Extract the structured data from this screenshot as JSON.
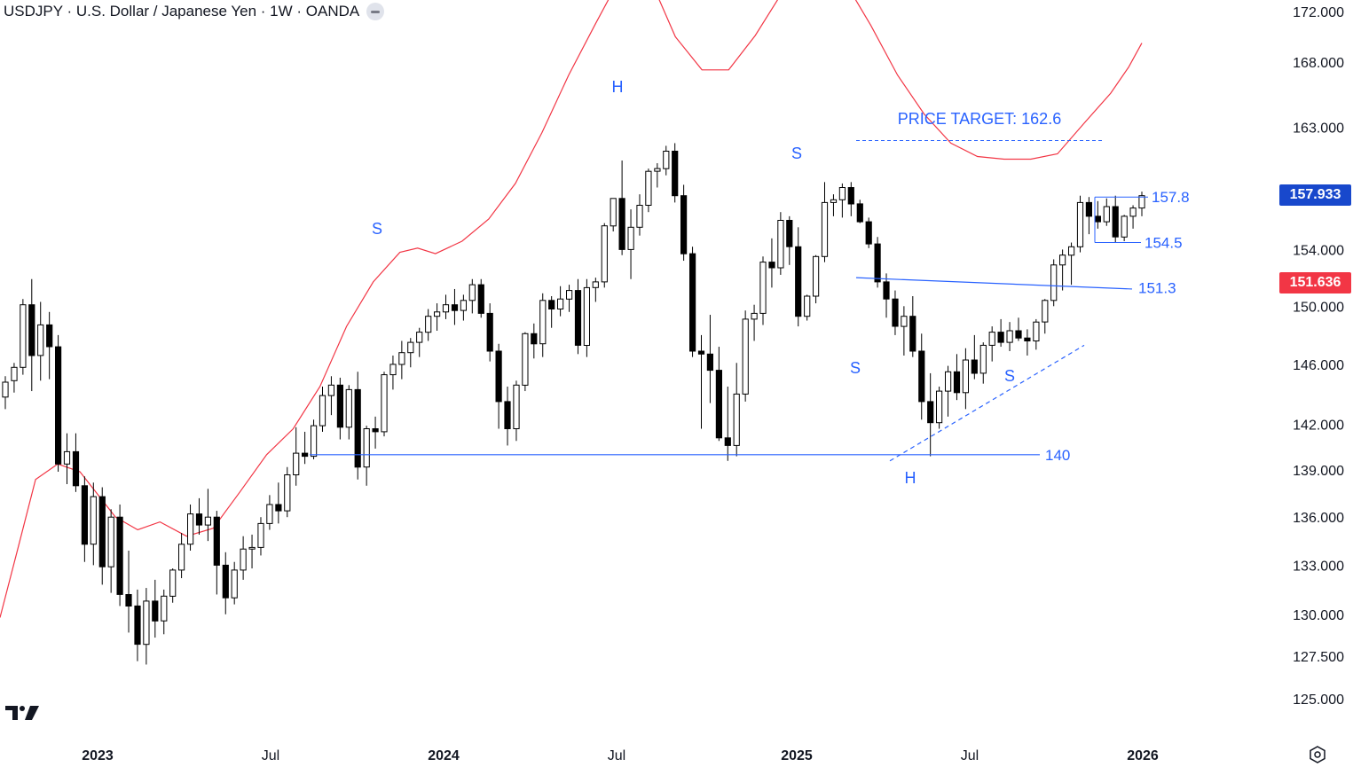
{
  "header": {
    "symbol_line": "USDJPY · U.S. Dollar / Japanese Yen · 1W · OANDA"
  },
  "price_tags": [
    {
      "label": "157.933",
      "value": 157.933,
      "color": "#1848cc"
    },
    {
      "label": "151.636",
      "value": 151.636,
      "color": "#f23645"
    }
  ],
  "chart_data": {
    "type": "candlestick",
    "y_axis": {
      "scale": "log",
      "range": [
        123.2,
        173.0
      ],
      "ticks": [
        "172.000",
        "168.000",
        "163.000",
        "154.000",
        "150.000",
        "146.000",
        "142.000",
        "139.000",
        "136.000",
        "133.000",
        "130.000",
        "127.500",
        "125.000"
      ]
    },
    "x_axis": {
      "labels": [
        "2023",
        "Jul",
        "2024",
        "Jul",
        "2025",
        "Jul",
        "2026"
      ]
    },
    "grid": false,
    "colors": {
      "up": "#ffffff",
      "down": "#000000",
      "wick": "#000000",
      "ma": "#f23645",
      "annotation": "#2962ff"
    },
    "moving_average": {
      "points": [
        [
          0,
          129.8
        ],
        [
          20,
          134
        ],
        [
          40,
          138.4
        ],
        [
          65,
          139.4
        ],
        [
          90,
          138.9
        ],
        [
          130,
          136.0
        ],
        [
          155,
          135.2
        ],
        [
          180,
          135.7
        ],
        [
          210,
          134.8
        ],
        [
          240,
          135.3
        ],
        [
          270,
          137.6
        ],
        [
          300,
          140.0
        ],
        [
          330,
          141.7
        ],
        [
          360,
          144.5
        ],
        [
          390,
          148.6
        ],
        [
          420,
          151.7
        ],
        [
          450,
          153.8
        ],
        [
          470,
          154.1
        ],
        [
          490,
          153.7
        ],
        [
          520,
          154.6
        ],
        [
          550,
          156.2
        ],
        [
          580,
          158.8
        ],
        [
          610,
          162.6
        ],
        [
          640,
          167.0
        ],
        [
          670,
          171.0
        ],
        [
          700,
          175.0
        ],
        [
          715,
          176.0
        ],
        [
          730,
          174.9
        ],
        [
          760,
          170.0
        ],
        [
          790,
          167.4
        ],
        [
          820,
          167.4
        ],
        [
          850,
          170.1
        ],
        [
          880,
          173.5
        ],
        [
          910,
          175.5
        ],
        [
          930,
          175.9
        ],
        [
          950,
          174.5
        ],
        [
          980,
          170.9
        ],
        [
          1010,
          167.0
        ],
        [
          1040,
          164.0
        ],
        [
          1070,
          161.8
        ],
        [
          1100,
          160.8
        ],
        [
          1130,
          160.6
        ],
        [
          1160,
          160.6
        ],
        [
          1190,
          161.0
        ],
        [
          1220,
          163.3
        ],
        [
          1250,
          165.6
        ],
        [
          1270,
          167.6
        ],
        [
          1285,
          169.5
        ]
      ],
      "comment": "MA values in price units; first value = x-index/step position along the bar sequence"
    },
    "candles_ohlc": [
      [
        143.8,
        145.2,
        143.0,
        144.8
      ],
      [
        144.9,
        146.1,
        144.1,
        145.8
      ],
      [
        145.8,
        150.5,
        145.3,
        150.1
      ],
      [
        150.1,
        151.9,
        144.2,
        146.6
      ],
      [
        146.6,
        150.3,
        144.9,
        148.7
      ],
      [
        148.7,
        149.6,
        145.0,
        147.2
      ],
      [
        147.2,
        148.0,
        138.9,
        139.4
      ],
      [
        139.4,
        141.4,
        138.1,
        140.2
      ],
      [
        140.2,
        141.4,
        137.6,
        138.0
      ],
      [
        138.0,
        138.6,
        133.2,
        134.3
      ],
      [
        134.3,
        138.2,
        133.0,
        137.3
      ],
      [
        137.3,
        137.9,
        131.8,
        132.9
      ],
      [
        132.9,
        136.5,
        131.3,
        136.0
      ],
      [
        136.0,
        136.8,
        130.5,
        131.2
      ],
      [
        131.2,
        133.9,
        128.9,
        130.5
      ],
      [
        130.5,
        131.5,
        127.2,
        128.2
      ],
      [
        128.2,
        131.6,
        127.0,
        130.8
      ],
      [
        130.8,
        132.1,
        128.6,
        129.6
      ],
      [
        129.6,
        131.5,
        128.8,
        131.1
      ],
      [
        131.1,
        132.8,
        130.7,
        132.7
      ],
      [
        132.7,
        135.0,
        132.2,
        134.3
      ],
      [
        134.3,
        136.8,
        133.9,
        136.2
      ],
      [
        136.2,
        137.2,
        134.9,
        135.5
      ],
      [
        135.5,
        137.8,
        134.5,
        136.0
      ],
      [
        136.0,
        136.4,
        131.2,
        133.0
      ],
      [
        133.0,
        133.8,
        130.0,
        131.0
      ],
      [
        131.0,
        133.2,
        130.6,
        132.7
      ],
      [
        132.7,
        134.8,
        132.1,
        134.0
      ],
      [
        134.0,
        134.9,
        132.8,
        134.1
      ],
      [
        134.1,
        136.0,
        133.6,
        135.6
      ],
      [
        135.6,
        137.4,
        135.2,
        136.8
      ],
      [
        136.8,
        138.2,
        135.6,
        136.4
      ],
      [
        136.4,
        139.2,
        136.0,
        138.7
      ],
      [
        138.7,
        141.8,
        138.0,
        140.1
      ],
      [
        140.1,
        141.5,
        139.4,
        139.9
      ],
      [
        139.9,
        142.3,
        139.7,
        141.9
      ],
      [
        141.9,
        144.5,
        141.5,
        143.9
      ],
      [
        143.9,
        145.2,
        142.6,
        144.6
      ],
      [
        144.6,
        145.1,
        141.0,
        141.8
      ],
      [
        141.8,
        144.6,
        141.0,
        144.3
      ],
      [
        144.3,
        145.5,
        138.4,
        139.2
      ],
      [
        139.2,
        141.9,
        138.0,
        141.7
      ],
      [
        141.7,
        142.5,
        140.4,
        141.5
      ],
      [
        141.5,
        145.5,
        141.2,
        145.3
      ],
      [
        145.3,
        146.6,
        144.3,
        146.0
      ],
      [
        146.0,
        147.6,
        145.0,
        146.8
      ],
      [
        146.8,
        147.8,
        145.8,
        147.5
      ],
      [
        147.5,
        148.5,
        146.5,
        148.2
      ],
      [
        148.2,
        149.8,
        147.6,
        149.3
      ],
      [
        149.3,
        150.2,
        148.3,
        149.6
      ],
      [
        149.6,
        150.8,
        149.1,
        150.1
      ],
      [
        150.1,
        151.2,
        148.7,
        149.7
      ],
      [
        149.7,
        150.8,
        149.0,
        150.4
      ],
      [
        150.4,
        151.9,
        149.5,
        151.5
      ],
      [
        151.5,
        151.9,
        149.2,
        149.5
      ],
      [
        149.5,
        150.2,
        146.2,
        146.9
      ],
      [
        146.9,
        147.4,
        141.7,
        143.5
      ],
      [
        143.5,
        144.5,
        140.6,
        141.7
      ],
      [
        141.7,
        144.9,
        140.9,
        144.6
      ],
      [
        144.6,
        148.2,
        144.2,
        148.1
      ],
      [
        148.1,
        148.8,
        146.4,
        147.4
      ],
      [
        147.4,
        150.9,
        146.5,
        150.4
      ],
      [
        150.4,
        150.7,
        148.5,
        149.8
      ],
      [
        149.8,
        151.4,
        149.3,
        150.5
      ],
      [
        150.5,
        151.5,
        149.6,
        151.1
      ],
      [
        151.1,
        151.9,
        146.7,
        147.3
      ],
      [
        147.3,
        151.9,
        146.5,
        151.3
      ],
      [
        151.3,
        152.0,
        150.3,
        151.7
      ],
      [
        151.7,
        155.9,
        151.3,
        155.7
      ],
      [
        155.7,
        157.7,
        155.3,
        157.7
      ],
      [
        157.7,
        160.5,
        153.6,
        154.0
      ],
      [
        154.0,
        156.9,
        151.9,
        155.6
      ],
      [
        155.6,
        158.0,
        155.0,
        157.2
      ],
      [
        157.2,
        159.9,
        156.7,
        159.7
      ],
      [
        159.7,
        160.3,
        158.5,
        159.9
      ],
      [
        159.9,
        161.6,
        159.4,
        161.2
      ],
      [
        161.2,
        161.8,
        157.4,
        157.9
      ],
      [
        157.9,
        158.7,
        153.2,
        153.7
      ],
      [
        153.7,
        154.2,
        146.5,
        146.9
      ],
      [
        146.9,
        148.0,
        141.7,
        146.7
      ],
      [
        146.7,
        149.4,
        143.4,
        145.6
      ],
      [
        145.6,
        147.2,
        140.9,
        141.1
      ],
      [
        141.1,
        144.5,
        139.6,
        140.6
      ],
      [
        140.6,
        146.1,
        139.9,
        144.0
      ],
      [
        144.0,
        149.7,
        143.5,
        149.1
      ],
      [
        149.1,
        150.1,
        147.6,
        149.5
      ],
      [
        149.5,
        153.5,
        148.7,
        153.1
      ],
      [
        153.1,
        154.8,
        151.3,
        152.7
      ],
      [
        152.7,
        156.7,
        152.2,
        156.1
      ],
      [
        156.1,
        156.4,
        152.9,
        154.2
      ],
      [
        154.2,
        155.6,
        148.6,
        149.3
      ],
      [
        149.3,
        150.8,
        149.0,
        150.7
      ],
      [
        150.7,
        153.6,
        150.2,
        153.5
      ],
      [
        153.5,
        158.9,
        153.1,
        157.4
      ],
      [
        157.4,
        158.0,
        156.4,
        157.6
      ],
      [
        157.6,
        158.8,
        156.3,
        158.5
      ],
      [
        158.5,
        158.9,
        156.4,
        157.3
      ],
      [
        157.3,
        157.6,
        155.9,
        156.0
      ],
      [
        156.0,
        156.3,
        154.1,
        154.4
      ],
      [
        154.4,
        154.9,
        151.3,
        151.7
      ],
      [
        151.7,
        152.3,
        149.2,
        150.5
      ],
      [
        150.5,
        151.1,
        148.0,
        148.6
      ],
      [
        148.6,
        150.0,
        146.6,
        149.3
      ],
      [
        149.3,
        150.7,
        146.5,
        146.9
      ],
      [
        146.9,
        148.1,
        142.3,
        143.5
      ],
      [
        143.5,
        145.4,
        139.9,
        142.1
      ],
      [
        142.1,
        144.5,
        141.7,
        144.2
      ],
      [
        144.2,
        145.9,
        142.5,
        145.5
      ],
      [
        145.5,
        146.7,
        143.6,
        144.1
      ],
      [
        144.1,
        147.1,
        143.0,
        146.3
      ],
      [
        146.3,
        148.0,
        145.0,
        145.4
      ],
      [
        145.4,
        147.5,
        144.7,
        147.3
      ],
      [
        147.3,
        148.6,
        146.2,
        148.2
      ],
      [
        148.2,
        149.1,
        147.2,
        147.5
      ],
      [
        147.5,
        148.9,
        146.9,
        148.3
      ],
      [
        148.3,
        149.2,
        147.6,
        147.8
      ],
      [
        147.8,
        148.4,
        146.6,
        147.6
      ],
      [
        147.6,
        149.1,
        147.0,
        148.9
      ],
      [
        148.9,
        150.5,
        148.1,
        150.4
      ],
      [
        150.4,
        153.3,
        150.0,
        152.9
      ],
      [
        152.9,
        154.0,
        151.1,
        153.6
      ],
      [
        153.6,
        154.5,
        151.5,
        154.2
      ],
      [
        154.2,
        157.9,
        153.8,
        157.4
      ],
      [
        157.4,
        157.8,
        155.1,
        156.4
      ],
      [
        156.4,
        157.5,
        155.5,
        156.0
      ],
      [
        156.0,
        157.7,
        155.7,
        157.1
      ],
      [
        157.1,
        157.9,
        154.5,
        154.9
      ],
      [
        154.9,
        156.5,
        154.6,
        156.4
      ],
      [
        156.4,
        157.2,
        155.5,
        157.0
      ],
      [
        157.0,
        158.2,
        156.4,
        157.9
      ]
    ],
    "annotations": [
      {
        "text": "S",
        "kind": "label"
      },
      {
        "text": "H",
        "kind": "label"
      },
      {
        "text": "S",
        "kind": "label"
      },
      {
        "text": "S",
        "kind": "label"
      },
      {
        "text": "H",
        "kind": "label"
      },
      {
        "text": "S",
        "kind": "label"
      },
      {
        "text": "PRICE TARGET: 162.6",
        "kind": "label",
        "value": 162.6
      },
      {
        "text": "157.8",
        "kind": "level",
        "value": 157.8
      },
      {
        "text": "154.5",
        "kind": "level",
        "value": 154.5
      },
      {
        "text": "151.3",
        "kind": "level",
        "value": 151.3
      },
      {
        "text": "140",
        "kind": "level",
        "value": 140.0
      }
    ]
  }
}
